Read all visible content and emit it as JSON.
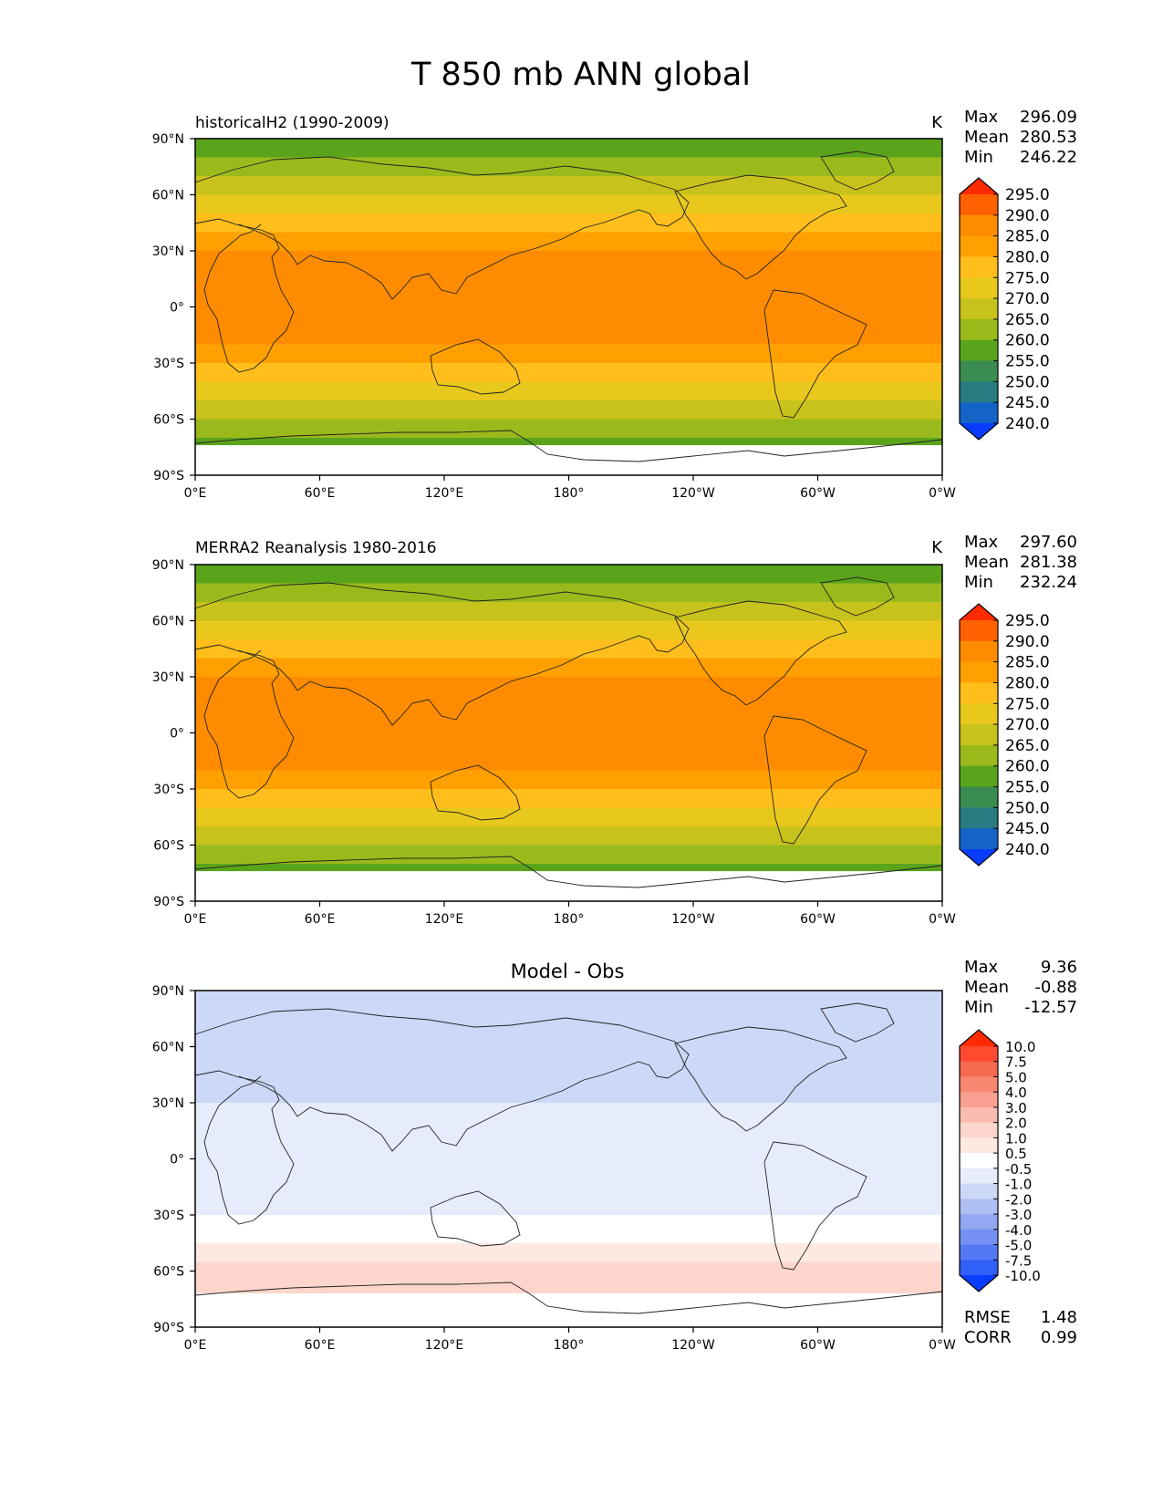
{
  "title": "T 850 mb ANN global",
  "chart_data": [
    {
      "type": "heatmap",
      "title": "historicalH2 (1990-2009)",
      "units": "K",
      "stats": [
        {
          "label": "Max",
          "value": "296.09"
        },
        {
          "label": "Mean",
          "value": "280.53"
        },
        {
          "label": "Min",
          "value": "246.22"
        }
      ],
      "x_ticks": [
        "0°E",
        "60°E",
        "120°E",
        "180°",
        "120°W",
        "60°W",
        "0°W"
      ],
      "y_ticks": [
        "90°N",
        "60°N",
        "30°N",
        "0°",
        "30°S",
        "60°S",
        "90°S"
      ],
      "xlim": [
        0,
        360
      ],
      "ylim": [
        -90,
        90
      ],
      "colorbar": {
        "labels": [
          "295.0",
          "290.0",
          "285.0",
          "280.0",
          "275.0",
          "270.0",
          "265.0",
          "260.0",
          "255.0",
          "250.0",
          "245.0",
          "240.0"
        ],
        "colors": [
          "#ff2a00",
          "#ff6000",
          "#ff8c00",
          "#ffa000",
          "#ffbe1c",
          "#e8c81c",
          "#c8c21c",
          "#9aba1c",
          "#5aa41c",
          "#3a8c50",
          "#287c82",
          "#1464c8",
          "#0a3cff"
        ]
      }
    },
    {
      "type": "heatmap",
      "title": "MERRA2 Reanalysis 1980-2016",
      "units": "K",
      "stats": [
        {
          "label": "Max",
          "value": "297.60"
        },
        {
          "label": "Mean",
          "value": "281.38"
        },
        {
          "label": "Min",
          "value": "232.24"
        }
      ],
      "x_ticks": [
        "0°E",
        "60°E",
        "120°E",
        "180°",
        "120°W",
        "60°W",
        "0°W"
      ],
      "y_ticks": [
        "90°N",
        "60°N",
        "30°N",
        "0°",
        "30°S",
        "60°S",
        "90°S"
      ],
      "xlim": [
        0,
        360
      ],
      "ylim": [
        -90,
        90
      ],
      "colorbar": {
        "labels": [
          "295.0",
          "290.0",
          "285.0",
          "280.0",
          "275.0",
          "270.0",
          "265.0",
          "260.0",
          "255.0",
          "250.0",
          "245.0",
          "240.0"
        ],
        "colors": [
          "#ff2a00",
          "#ff6000",
          "#ff8c00",
          "#ffa000",
          "#ffbe1c",
          "#e8c81c",
          "#c8c21c",
          "#9aba1c",
          "#5aa41c",
          "#3a8c50",
          "#287c82",
          "#1464c8",
          "#0a3cff"
        ]
      }
    },
    {
      "type": "heatmap",
      "title": "Model - Obs",
      "units": "",
      "stats": [
        {
          "label": "Max",
          "value": "9.36"
        },
        {
          "label": "Mean",
          "value": "-0.88"
        },
        {
          "label": "Min",
          "value": "-12.57"
        }
      ],
      "extra_stats": [
        {
          "label": "RMSE",
          "value": "1.48"
        },
        {
          "label": "CORR",
          "value": "0.99"
        }
      ],
      "x_ticks": [
        "0°E",
        "60°E",
        "120°E",
        "180°",
        "120°W",
        "60°W",
        "0°W"
      ],
      "y_ticks": [
        "90°N",
        "60°N",
        "30°N",
        "0°",
        "30°S",
        "60°S",
        "90°S"
      ],
      "xlim": [
        0,
        360
      ],
      "ylim": [
        -90,
        90
      ],
      "colorbar": {
        "labels": [
          "10.0",
          "7.5",
          "5.0",
          "4.0",
          "3.0",
          "2.0",
          "1.0",
          "0.5",
          "-0.5",
          "-1.0",
          "-2.0",
          "-3.0",
          "-4.0",
          "-5.0",
          "-7.5",
          "-10.0"
        ],
        "colors": [
          "#ff2a00",
          "#ff4a30",
          "#f56a50",
          "#f88870",
          "#f9a090",
          "#fbbcb0",
          "#fcd6cc",
          "#fde8e2",
          "#ffffff",
          "#e6ecfb",
          "#ccd8f8",
          "#aebff4",
          "#92a8f2",
          "#7490f2",
          "#5478f4",
          "#3060f8",
          "#0a3cff"
        ]
      }
    }
  ]
}
